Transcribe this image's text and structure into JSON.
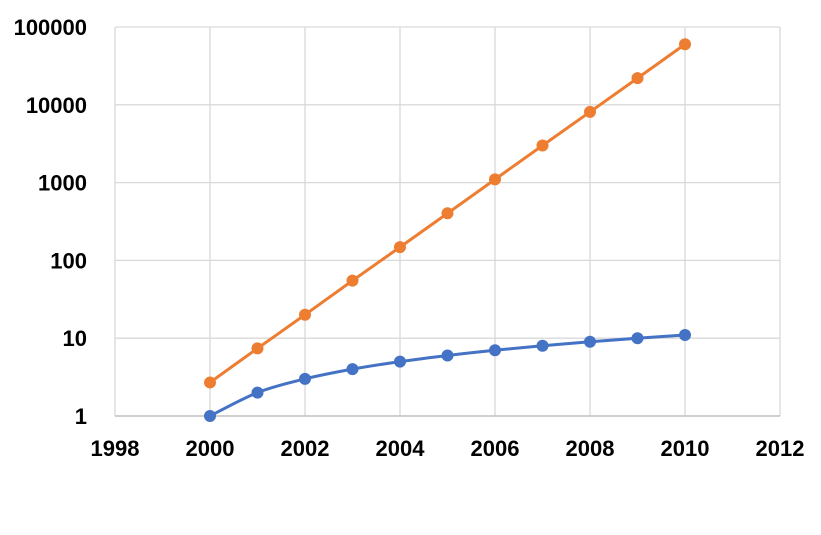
{
  "chart_data": {
    "type": "line",
    "title": "",
    "xlabel": "",
    "ylabel": "",
    "xlim": [
      1998,
      2012
    ],
    "ylim": [
      1,
      100000
    ],
    "yscale": "log",
    "x_ticks": [
      "1998",
      "2000",
      "2002",
      "2004",
      "2006",
      "2008",
      "2010",
      "2012"
    ],
    "y_ticks": [
      "1",
      "10",
      "100",
      "1000",
      "10000",
      "100000"
    ],
    "grid": true,
    "legend": "none",
    "x": [
      2000,
      2001,
      2002,
      2003,
      2004,
      2005,
      2006,
      2007,
      2008,
      2009,
      2010
    ],
    "series": [
      {
        "color": "#4472C4",
        "values": [
          1,
          2,
          3,
          4,
          5,
          6,
          7,
          8,
          9,
          10,
          11
        ]
      },
      {
        "color": "#ED7D31",
        "values": [
          2.7,
          7.4,
          20,
          55,
          148,
          403,
          1100,
          3000,
          8100,
          22000,
          60000
        ]
      }
    ]
  }
}
